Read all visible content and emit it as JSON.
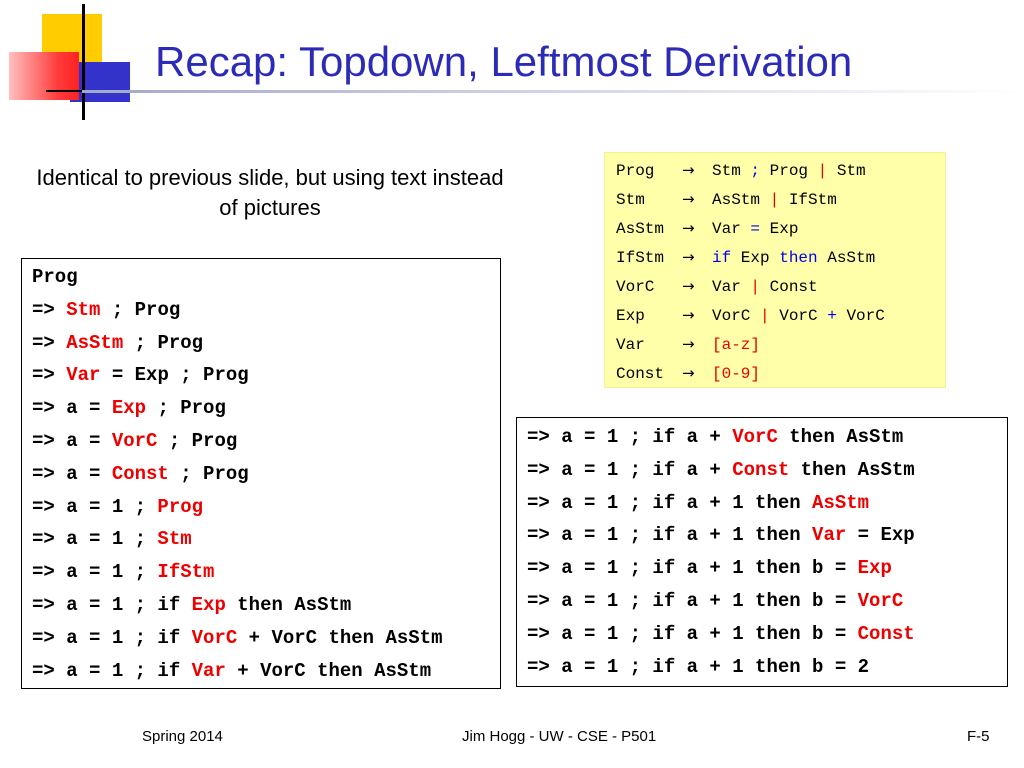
{
  "title": "Recap: Topdown, Leftmost Derivation",
  "subtitle": "Identical to previous slide, but using text instead of pictures",
  "grammar": [
    {
      "lhs": "Prog",
      "rhs": [
        [
          "Stm ",
          ""
        ],
        [
          ";",
          "blue"
        ],
        [
          " Prog ",
          ""
        ],
        [
          "|",
          "red"
        ],
        [
          " Stm",
          ""
        ]
      ]
    },
    {
      "lhs": "Stm",
      "rhs": [
        [
          "AsStm ",
          ""
        ],
        [
          "|",
          "red"
        ],
        [
          " IfStm",
          ""
        ]
      ]
    },
    {
      "lhs": "AsStm",
      "rhs": [
        [
          "Var ",
          ""
        ],
        [
          "=",
          "blue"
        ],
        [
          " Exp",
          ""
        ]
      ]
    },
    {
      "lhs": "IfStm",
      "rhs": [
        [
          "if",
          "blue"
        ],
        [
          " Exp ",
          ""
        ],
        [
          "then",
          "blue"
        ],
        [
          " AsStm",
          ""
        ]
      ]
    },
    {
      "lhs": "VorC",
      "rhs": [
        [
          "Var ",
          ""
        ],
        [
          "|",
          "red"
        ],
        [
          " Const",
          ""
        ]
      ]
    },
    {
      "lhs": "Exp",
      "rhs": [
        [
          "VorC ",
          ""
        ],
        [
          "|",
          "red"
        ],
        [
          " VorC ",
          ""
        ],
        [
          "+",
          "blue"
        ],
        [
          " VorC",
          ""
        ]
      ]
    },
    {
      "lhs": "Var",
      "rhs": [
        [
          "[a-z]",
          "red"
        ]
      ]
    },
    {
      "lhs": "Const",
      "rhs": [
        [
          "[0-9]",
          "red"
        ]
      ]
    }
  ],
  "arrow_symbol": "→",
  "left_derivation": [
    [
      [
        "Prog",
        ""
      ]
    ],
    [
      [
        "=> ",
        ""
      ],
      [
        "Stm",
        "red"
      ],
      [
        " ; Prog",
        ""
      ]
    ],
    [
      [
        "=> ",
        ""
      ],
      [
        "AsStm",
        "red"
      ],
      [
        " ; Prog",
        ""
      ]
    ],
    [
      [
        "=> ",
        ""
      ],
      [
        "Var",
        "red"
      ],
      [
        " = Exp ; Prog",
        ""
      ]
    ],
    [
      [
        "=> a = ",
        ""
      ],
      [
        "Exp",
        "red"
      ],
      [
        " ; Prog",
        ""
      ]
    ],
    [
      [
        "=> a = ",
        ""
      ],
      [
        "VorC",
        "red"
      ],
      [
        " ; Prog",
        ""
      ]
    ],
    [
      [
        "=> a = ",
        ""
      ],
      [
        "Const",
        "red"
      ],
      [
        " ; Prog",
        ""
      ]
    ],
    [
      [
        "=> a = 1 ; ",
        ""
      ],
      [
        "Prog",
        "red"
      ]
    ],
    [
      [
        "=> a = 1 ; ",
        ""
      ],
      [
        "Stm",
        "red"
      ]
    ],
    [
      [
        "=> a = 1 ; ",
        ""
      ],
      [
        "IfStm",
        "red"
      ]
    ],
    [
      [
        "=> a = 1 ; if ",
        ""
      ],
      [
        "Exp",
        "red"
      ],
      [
        " then AsStm",
        ""
      ]
    ],
    [
      [
        "=> a = 1 ; if ",
        ""
      ],
      [
        "VorC",
        "red"
      ],
      [
        " + VorC then AsStm",
        ""
      ]
    ],
    [
      [
        "=> a = 1 ; if ",
        ""
      ],
      [
        "Var",
        "red"
      ],
      [
        " + VorC then AsStm",
        ""
      ]
    ]
  ],
  "right_derivation": [
    [
      [
        "=> a = 1 ; if a + ",
        ""
      ],
      [
        "VorC",
        "red"
      ],
      [
        " then AsStm",
        ""
      ]
    ],
    [
      [
        "=> a = 1 ; if a + ",
        ""
      ],
      [
        "Const",
        "red"
      ],
      [
        " then AsStm",
        ""
      ]
    ],
    [
      [
        "=> a = 1 ; if a + 1 then ",
        ""
      ],
      [
        "AsStm",
        "red"
      ]
    ],
    [
      [
        "=> a = 1 ; if a + 1 then ",
        ""
      ],
      [
        "Var",
        "red"
      ],
      [
        " = Exp",
        ""
      ]
    ],
    [
      [
        "=> a = 1 ; if a + 1 then b = ",
        ""
      ],
      [
        "Exp",
        "red"
      ]
    ],
    [
      [
        "=> a = 1 ; if a + 1 then b = ",
        ""
      ],
      [
        "VorC",
        "red"
      ]
    ],
    [
      [
        "=> a = 1 ; if a + 1 then b = ",
        ""
      ],
      [
        "Const",
        "red"
      ]
    ],
    [
      [
        "=> a = 1 ; if a + 1 then b = 2",
        ""
      ]
    ]
  ],
  "footer": {
    "left": "Spring 2014",
    "center": "Jim Hogg - UW - CSE - P501",
    "right": "F-5"
  }
}
